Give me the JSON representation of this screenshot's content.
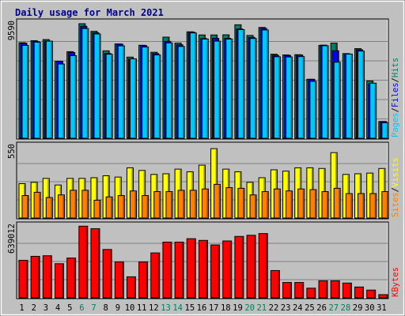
{
  "chart_data": {
    "type": "bar",
    "title": "Daily usage for March 2021",
    "categories": [
      "1",
      "2",
      "3",
      "4",
      "5",
      "6",
      "7",
      "8",
      "9",
      "10",
      "11",
      "12",
      "13",
      "14",
      "15",
      "16",
      "17",
      "18",
      "19",
      "20",
      "21",
      "22",
      "23",
      "24",
      "25",
      "26",
      "27",
      "28",
      "29",
      "30",
      "31"
    ],
    "weekend_days": [
      "6",
      "7",
      "13",
      "14",
      "20",
      "21",
      "27",
      "28"
    ],
    "panels": [
      {
        "id": "top",
        "ymax": 9590,
        "scale_label": "9590",
        "legend": [
          {
            "name": "Pages",
            "color": "#00c8ff"
          },
          {
            "name": "Files",
            "color": "#0000ff"
          },
          {
            "name": "Hits",
            "color": "#008060"
          }
        ],
        "series": [
          {
            "name": "Hits",
            "color": "#008060",
            "values": [
              7890,
              8060,
              8150,
              6350,
              7150,
              9460,
              8830,
              7220,
              7790,
              6700,
              7680,
              7100,
              8350,
              7860,
              8790,
              8530,
              8530,
              8540,
              9370,
              8490,
              9150,
              6940,
              6880,
              6900,
              4870,
              7670,
              7860,
              6990,
              7400,
              4730,
              1380
            ]
          },
          {
            "name": "Files",
            "color": "#0000ff",
            "values": [
              7850,
              7990,
              8020,
              6350,
              7080,
              9250,
              8710,
              7000,
              7770,
              6550,
              7650,
              6990,
              8000,
              7720,
              8760,
              8230,
              8250,
              8250,
              9020,
              8330,
              9070,
              6850,
              6840,
              6880,
              4870,
              7690,
              7230,
              6960,
              7310,
              4500,
              1380
            ]
          },
          {
            "name": "Pages",
            "color": "#00c8ff",
            "values": [
              7670,
              7930,
              8020,
              6130,
              6820,
              9060,
              8610,
              6940,
              7630,
              6560,
              7530,
              6880,
              7870,
              7580,
              8700,
              8190,
              8020,
              8190,
              8970,
              8240,
              8940,
              6730,
              6710,
              6740,
              4700,
              7640,
              6280,
              6950,
              7200,
              4550,
              1280
            ]
          }
        ]
      },
      {
        "id": "middle",
        "ymax": 550,
        "scale_label": "550",
        "legend": [
          {
            "name": "Sites",
            "color": "#ff8000"
          },
          {
            "name": "Visits",
            "color": "#ffff00"
          }
        ],
        "series": [
          {
            "name": "Visits",
            "color": "#ffff00",
            "values": [
              260,
              270,
              300,
              250,
              300,
              300,
              305,
              320,
              310,
              380,
              360,
              330,
              335,
              370,
              350,
              400,
              525,
              370,
              350,
              270,
              305,
              365,
              355,
              380,
              380,
              375,
              495,
              330,
              335,
              340,
              375
            ]
          },
          {
            "name": "Sites",
            "color": "#ff8000",
            "values": [
              170,
              195,
              155,
              175,
              210,
              210,
              135,
              160,
              170,
              205,
              170,
              200,
              200,
              210,
              210,
              220,
              255,
              230,
              225,
              175,
              200,
              220,
              205,
              220,
              215,
              200,
              225,
              185,
              185,
              185,
              200
            ]
          }
        ]
      },
      {
        "id": "bottom",
        "ymax": 639012,
        "scale_label": "639012",
        "legend": [
          {
            "name": "KBytes",
            "color": "#ff0000"
          }
        ],
        "series": [
          {
            "name": "KBytes",
            "color": "#ff0000",
            "values": [
              330000,
              365000,
              370000,
              300000,
              350000,
              630000,
              608000,
              425000,
              315000,
              185000,
              315000,
              395000,
              490000,
              490000,
              520000,
              505000,
              465000,
              500000,
              540000,
              550000,
              565000,
              240000,
              135000,
              135000,
              85000,
              150000,
              150000,
              130000,
              95000,
              68000,
              28000
            ]
          }
        ]
      }
    ],
    "colors": {
      "panel_bg": "#c0c0c0",
      "frame_bg": "#ffffff",
      "weekday_label": "#000000",
      "weekend_label": "#00805e",
      "title": "#00008b"
    },
    "grid": true
  }
}
